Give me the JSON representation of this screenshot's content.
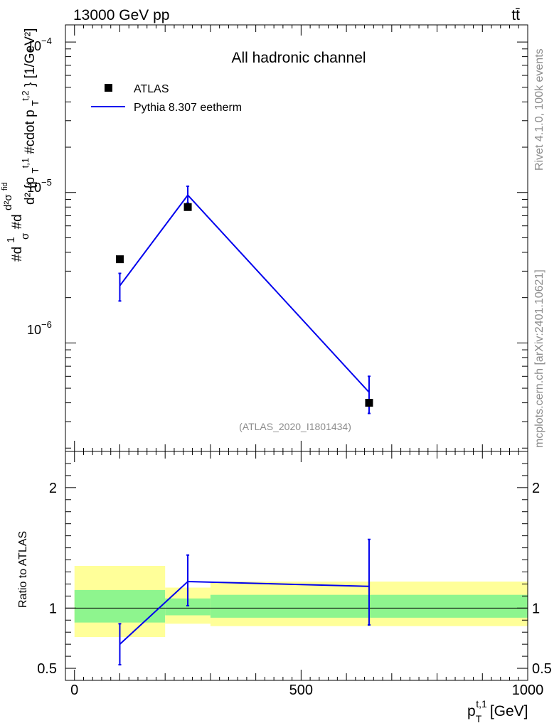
{
  "header": {
    "energy_label": "13000 GeV pp",
    "process_label": "tt̄",
    "side_rivet": "Rivet 4.1.0,  100k events",
    "side_site": "mcplots.cern.ch [arXiv:2401.10621]"
  },
  "chart_data": [
    {
      "type": "scatter",
      "title": "All hadronic channel",
      "watermark": "(ATLAS_2020_I1801434)",
      "ylabel": "#d¹/σ#d d²σᶦᵈ/d²{p_T^{t,1} #cdot p_T^{t,2}} [1/GeV²]",
      "ylabel_parts": {
        "main": "#d",
        "frac1_num": "1",
        "frac1_den": "σ",
        "mid": "#d",
        "frac2_num": "d²σ",
        "frac2_num_sup": "fid",
        "frac2_den": "d² {p",
        "frac2_den_sub1": "T",
        "frac2_den_sup1": "t,1",
        "frac2_den_mid": " #cdot p",
        "frac2_den_sub2": "T",
        "frac2_den_sup2": "t,2",
        "frac2_den_end": "}",
        "units": "[1/GeV²]"
      },
      "yscale": "log",
      "ylim": [
        1.9e-07,
        0.00013
      ],
      "ytick_labels": [
        {
          "value": 1e-06,
          "base": "10",
          "exp": "−6"
        },
        {
          "value": 1e-05,
          "base": "10",
          "exp": "−5"
        },
        {
          "value": 0.0001,
          "base": "10",
          "exp": "−4"
        }
      ],
      "xlim": [
        -20,
        1000
      ],
      "legend": {
        "placement": "top-left",
        "entries": [
          "ATLAS",
          "Pythia 8.307 eetherm"
        ]
      },
      "series": [
        {
          "name": "ATLAS",
          "marker": "square",
          "color": "#000000",
          "x": [
            100,
            250,
            650
          ],
          "y": [
            3.6e-06,
            8e-06,
            4e-07
          ],
          "bins": [
            [
              0,
              200
            ],
            [
              200,
              300
            ],
            [
              300,
              1000
            ]
          ]
        },
        {
          "name": "Pythia 8.307 eetherm",
          "color": "#0000ee",
          "x": [
            100,
            250,
            650
          ],
          "y": [
            2.4e-06,
            9.6e-06,
            4.7e-07
          ],
          "yerr_low": [
            1.9e-06,
            8.5e-06,
            3.4e-07
          ],
          "yerr_high": [
            2.9e-06,
            1.1e-05,
            6e-07
          ]
        }
      ]
    },
    {
      "type": "ratio",
      "ylabel": "Ratio to ATLAS",
      "ylim": [
        0.4,
        2.3
      ],
      "ytick_labels": [
        0.5,
        1,
        2
      ],
      "xlabel_main": "p",
      "xlabel_sub": "T",
      "xlabel_sup": "t,1",
      "xlabel_units": "[GeV]",
      "xlim": [
        -20,
        1000
      ],
      "xtick_labels": [
        0,
        500,
        1000
      ],
      "bands": [
        {
          "x": [
            0,
            200
          ],
          "stat": [
            0.88,
            1.15
          ],
          "total": [
            0.76,
            1.35
          ]
        },
        {
          "x": [
            200,
            300
          ],
          "stat": [
            0.94,
            1.08
          ],
          "total": [
            0.87,
            1.17
          ]
        },
        {
          "x": [
            300,
            1000
          ],
          "stat": [
            0.92,
            1.11
          ],
          "total": [
            0.85,
            1.22
          ]
        }
      ],
      "band_colors": {
        "stat": "#8ef58e",
        "total": "#ffff99"
      },
      "series": [
        {
          "name": "Pythia 8.307 eetherm",
          "color": "#0000ee",
          "x": [
            100,
            250,
            650
          ],
          "y": [
            0.7,
            1.22,
            1.18
          ],
          "yerr_low": [
            0.53,
            1.02,
            0.86
          ],
          "yerr_high": [
            0.87,
            1.44,
            1.57
          ]
        }
      ]
    }
  ]
}
